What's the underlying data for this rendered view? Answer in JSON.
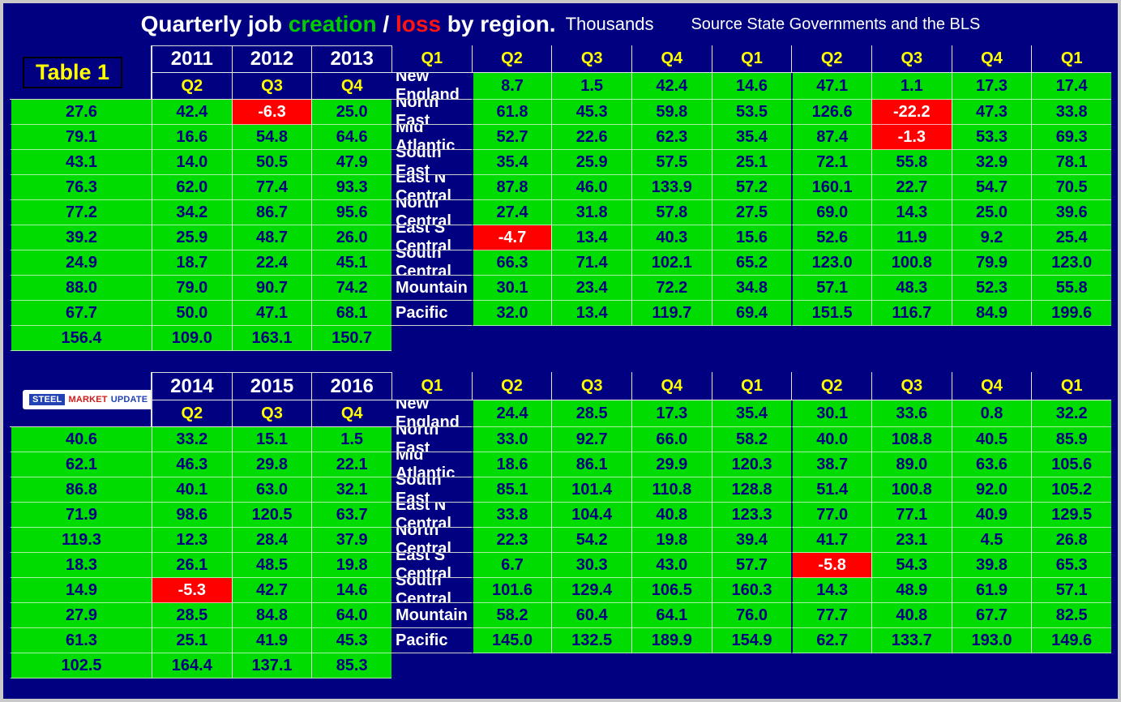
{
  "title": {
    "prefix": "Quarterly job ",
    "creation": "creation",
    "slash": " / ",
    "loss": "loss",
    "suffix": " by region.",
    "units": "Thousands",
    "source": "Source State Governments and the BLS"
  },
  "labels": {
    "table_label": "Table 1"
  },
  "logo": {
    "word1": "STEEL",
    "word2": "MARKET",
    "word3": "UPDATE"
  },
  "colors": {
    "background_navy": "#000080",
    "positive_green": "#00DC00",
    "negative_red": "#FF0000",
    "quarter_yellow": "#FFFF00",
    "title_creation_green": "#00CC00",
    "title_loss_red": "#FF1313",
    "text_white": "#FFFFFF"
  },
  "chart_data": {
    "type": "table",
    "title": "Quarterly job creation / loss by region.",
    "units": "Thousands",
    "source": "Source State Governments and the BLS",
    "quarters": [
      "Q1",
      "Q2",
      "Q3",
      "Q4"
    ],
    "negative_style": {
      "background": "#FF0000",
      "text": "#FFFFFF"
    },
    "tables": [
      {
        "years": [
          "2011",
          "2012",
          "2013"
        ],
        "rows": [
          {
            "region": "New England",
            "values": [
              8.7,
              1.5,
              42.4,
              14.6,
              47.1,
              1.1,
              17.3,
              17.4,
              27.6,
              42.4,
              -6.3,
              25.0
            ]
          },
          {
            "region": "North East",
            "values": [
              61.8,
              45.3,
              59.8,
              53.5,
              126.6,
              -22.2,
              47.3,
              33.8,
              79.1,
              16.6,
              54.8,
              64.6
            ]
          },
          {
            "region": "Mid Atlantic",
            "values": [
              52.7,
              22.6,
              62.3,
              35.4,
              87.4,
              -1.3,
              53.3,
              69.3,
              43.1,
              14.0,
              50.5,
              47.9
            ]
          },
          {
            "region": "South East",
            "values": [
              35.4,
              25.9,
              57.5,
              25.1,
              72.1,
              55.8,
              32.9,
              78.1,
              76.3,
              62.0,
              77.4,
              93.3
            ]
          },
          {
            "region": "East N Central",
            "values": [
              87.8,
              46.0,
              133.9,
              57.2,
              160.1,
              22.7,
              54.7,
              70.5,
              77.2,
              34.2,
              86.7,
              95.6
            ]
          },
          {
            "region": "North Central",
            "values": [
              27.4,
              31.8,
              57.8,
              27.5,
              69.0,
              14.3,
              25.0,
              39.6,
              39.2,
              25.9,
              48.7,
              26.0
            ]
          },
          {
            "region": "East S Central",
            "values": [
              -4.7,
              13.4,
              40.3,
              15.6,
              52.6,
              11.9,
              9.2,
              25.4,
              24.9,
              18.7,
              22.4,
              45.1
            ]
          },
          {
            "region": "South Central",
            "values": [
              66.3,
              71.4,
              102.1,
              65.2,
              123.0,
              100.8,
              79.9,
              123.0,
              88.0,
              79.0,
              90.7,
              74.2
            ]
          },
          {
            "region": "Mountain",
            "values": [
              30.1,
              23.4,
              72.2,
              34.8,
              57.1,
              48.3,
              52.3,
              55.8,
              67.7,
              50.0,
              47.1,
              68.1
            ]
          },
          {
            "region": "Pacific",
            "values": [
              32.0,
              13.4,
              119.7,
              69.4,
              151.5,
              116.7,
              84.9,
              199.6,
              156.4,
              109.0,
              163.1,
              150.7
            ]
          }
        ]
      },
      {
        "years": [
          "2014",
          "2015",
          "2016"
        ],
        "rows": [
          {
            "region": "New England",
            "values": [
              24.4,
              28.5,
              17.3,
              35.4,
              30.1,
              33.6,
              0.8,
              32.2,
              40.6,
              33.2,
              15.1,
              1.5
            ]
          },
          {
            "region": "North East",
            "values": [
              33.0,
              92.7,
              66.0,
              58.2,
              40.0,
              108.8,
              40.5,
              85.9,
              62.1,
              46.3,
              29.8,
              22.1
            ]
          },
          {
            "region": "Mid Atlantic",
            "values": [
              18.6,
              86.1,
              29.9,
              120.3,
              38.7,
              89.0,
              63.6,
              105.6,
              86.8,
              40.1,
              63.0,
              32.1
            ]
          },
          {
            "region": "South East",
            "values": [
              85.1,
              101.4,
              110.8,
              128.8,
              51.4,
              100.8,
              92.0,
              105.2,
              71.9,
              98.6,
              120.5,
              63.7
            ]
          },
          {
            "region": "East N Central",
            "values": [
              33.8,
              104.4,
              40.8,
              123.3,
              77.0,
              77.1,
              40.9,
              129.5,
              119.3,
              12.3,
              28.4,
              37.9
            ]
          },
          {
            "region": "North Central",
            "values": [
              22.3,
              54.2,
              19.8,
              39.4,
              41.7,
              23.1,
              4.5,
              26.8,
              18.3,
              26.1,
              48.5,
              19.8
            ]
          },
          {
            "region": "East S Central",
            "values": [
              6.7,
              30.3,
              43.0,
              57.7,
              -5.8,
              54.3,
              39.8,
              65.3,
              14.9,
              -5.3,
              42.7,
              14.6
            ]
          },
          {
            "region": "South Central",
            "values": [
              101.6,
              129.4,
              106.5,
              160.3,
              14.3,
              48.9,
              61.9,
              57.1,
              27.9,
              28.5,
              84.8,
              64.0
            ]
          },
          {
            "region": "Mountain",
            "values": [
              58.2,
              60.4,
              64.1,
              76.0,
              77.7,
              40.8,
              67.7,
              82.5,
              61.3,
              25.1,
              41.9,
              45.3
            ]
          },
          {
            "region": "Pacific",
            "values": [
              145.0,
              132.5,
              189.9,
              154.9,
              62.7,
              133.7,
              193.0,
              149.6,
              102.5,
              164.4,
              137.1,
              85.3
            ]
          }
        ]
      }
    ]
  }
}
